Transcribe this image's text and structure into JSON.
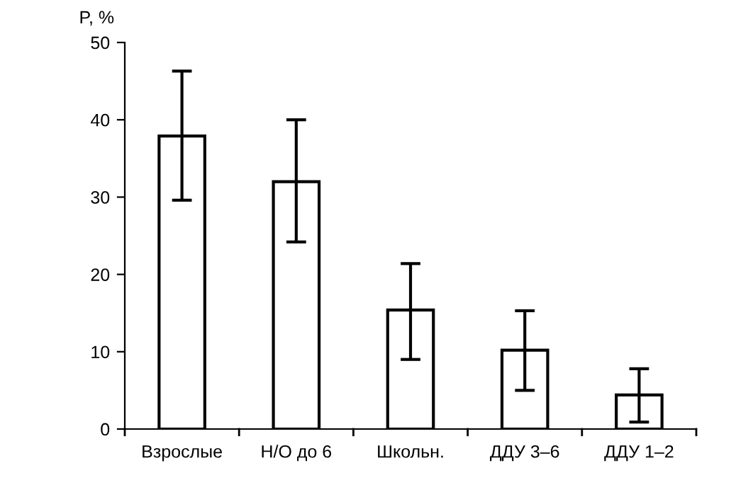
{
  "chart_data": {
    "type": "bar",
    "ylabel": "P, %",
    "categories": [
      "Взрослые",
      "Н/О до 6",
      "Школьн.",
      "ДДУ 3–6",
      "ДДУ 1–2"
    ],
    "values": [
      37.9,
      32.0,
      15.4,
      10.2,
      4.4
    ],
    "errors": [
      [
        29.6,
        46.3
      ],
      [
        24.2,
        40.0
      ],
      [
        9.0,
        21.4
      ],
      [
        5.0,
        15.3
      ],
      [
        0.9,
        7.8
      ]
    ],
    "color": "#ffffff",
    "ylim": [
      0,
      50
    ],
    "yticks": [
      0,
      10,
      20,
      30,
      40,
      50
    ],
    "grid": false,
    "legend": false
  }
}
